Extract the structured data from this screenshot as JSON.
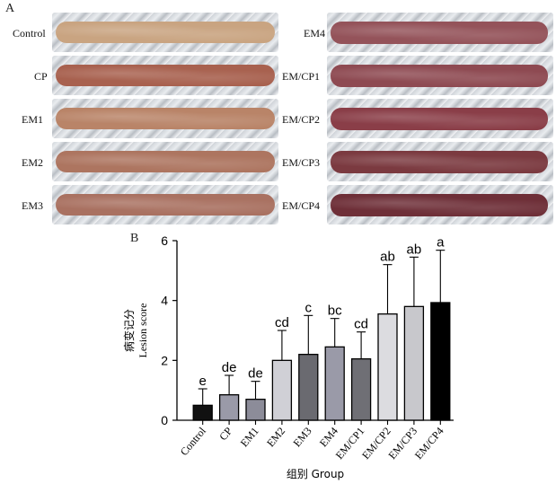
{
  "panels": {
    "a_label": "A",
    "b_label": "B"
  },
  "photos": {
    "left": [
      {
        "label": "Control",
        "color": "#c9a481"
      },
      {
        "label": "CP",
        "color": "#a8614f"
      },
      {
        "label": "EM1",
        "color": "#b98468"
      },
      {
        "label": "EM2",
        "color": "#ad7560"
      },
      {
        "label": "EM3",
        "color": "#a97161"
      }
    ],
    "right": [
      {
        "label": "EM4",
        "color": "#94535a"
      },
      {
        "label": "EM/CP1",
        "color": "#8e4a52"
      },
      {
        "label": "EM/CP2",
        "color": "#8a3e48"
      },
      {
        "label": "EM/CP3",
        "color": "#7b3a40"
      },
      {
        "label": "EM/CP4",
        "color": "#6e2f38"
      }
    ]
  },
  "chart_data": {
    "type": "bar",
    "categories": [
      "Control",
      "CP",
      "EM1",
      "EM2",
      "EM3",
      "EM4",
      "EM/CP1",
      "EM/CP2",
      "EM/CP3",
      "EM/CP4"
    ],
    "values": [
      0.5,
      0.85,
      0.7,
      2.0,
      2.2,
      2.45,
      2.05,
      3.55,
      3.8,
      3.93
    ],
    "errors": [
      0.55,
      0.65,
      0.6,
      1.0,
      1.3,
      0.95,
      0.9,
      1.65,
      1.65,
      1.75
    ],
    "letters": [
      "e",
      "de",
      "de",
      "cd",
      "c",
      "bc",
      "cd",
      "ab",
      "ab",
      "a"
    ],
    "bar_colors": [
      "#111111",
      "#9a9aa8",
      "#8c8c99",
      "#d0d0d6",
      "#6a6a70",
      "#9a9aa8",
      "#6f6f75",
      "#dcdce0",
      "#c8c8cc",
      "#000000"
    ],
    "ylabel_cn": "病变记分",
    "ylabel_en": "Lesion score",
    "xlabel": "组别 Group",
    "ylim": [
      0,
      6
    ],
    "yticks": [
      "0",
      "2",
      "4",
      "6"
    ],
    "grid": false
  }
}
